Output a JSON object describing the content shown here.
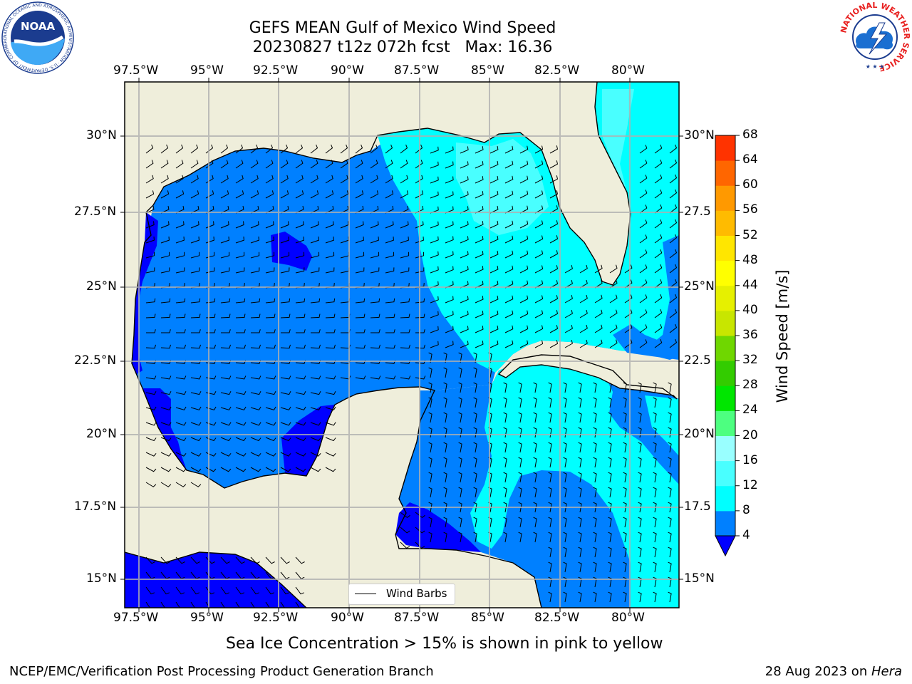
{
  "title": {
    "line1": "GEFS MEAN Gulf of Mexico Wind Speed",
    "line2": "20230827 t12z 072h fcst   Max: 16.36"
  },
  "map": {
    "lon_ticks": [
      "97.5°W",
      "95°W",
      "92.5°W",
      "90°W",
      "87.5°W",
      "85°W",
      "82.5°W",
      "80°W"
    ],
    "lat_ticks_left": [
      "30°N",
      "27.5°N",
      "25°N",
      "22.5°N",
      "20°N",
      "17.5°N",
      "15°N"
    ],
    "lat_ticks_right": [
      "30°N",
      "27.5",
      "25°N",
      "22.5",
      "20°N",
      "17.5",
      "15°N"
    ],
    "legend_label": "Wind Barbs",
    "colors": {
      "land": "#efeedb",
      "speed_4_8": "#0080ff",
      "speed_below_4": "#0000ff",
      "speed_8_12": "#00ffff",
      "speed_12_16": "#49ffff",
      "speed_16_20": "#99ffff"
    }
  },
  "colorbar": {
    "label": "Wind Speed [m/s]",
    "ticks": [
      "4",
      "8",
      "12",
      "16",
      "20",
      "24",
      "28",
      "32",
      "36",
      "40",
      "44",
      "48",
      "52",
      "56",
      "60",
      "64",
      "68"
    ],
    "colors": [
      "#0080ff",
      "#00ffff",
      "#49ffff",
      "#99ffff",
      "#4dff80",
      "#00e600",
      "#33cc00",
      "#6fd700",
      "#c8e600",
      "#e6f000",
      "#ffff00",
      "#ffe600",
      "#ffbb00",
      "#ff9900",
      "#ff6600",
      "#ff3300",
      "#ff0000"
    ],
    "under_color": "#0000ff"
  },
  "subtitle": "Sea Ice Concentration > 15% is shown in pink to yellow",
  "footer": {
    "left": "NCEP/EMC/Verification Post Processing Product Generation Branch",
    "right_prefix": "28 Aug 2023 on ",
    "right_host": "Hera"
  },
  "logos": {
    "noaa_text": "NOAA",
    "noaa_ring_text": "NATIONAL OCEANIC AND ATMOSPHERIC ADMINISTRATION · U.S. DEPARTMENT OF COMMERCE",
    "nws_ring_text": "NATIONAL WEATHER SERVICE"
  }
}
